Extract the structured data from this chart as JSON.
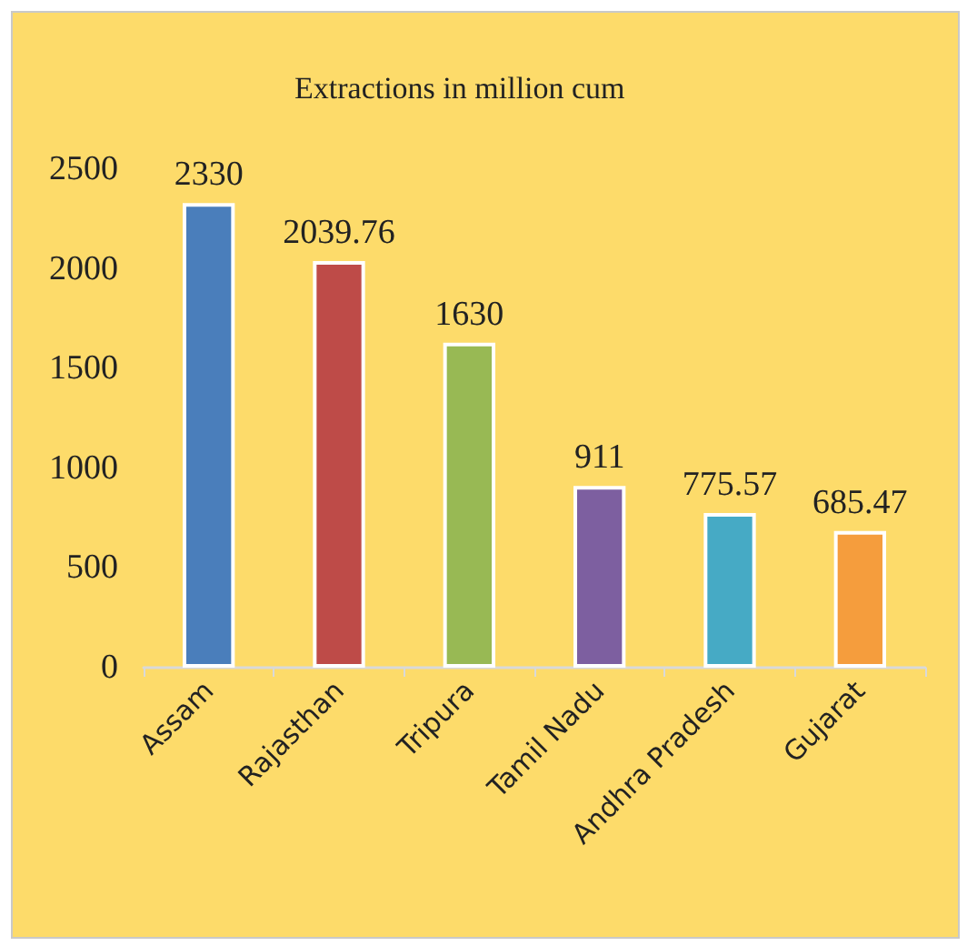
{
  "chart_data": {
    "type": "bar",
    "title": "Extractions in million cum",
    "categories": [
      "Assam",
      "Rajasthan",
      "Tripura",
      "Tamil Nadu",
      "Andhra Pradesh",
      "Gujarat"
    ],
    "values": [
      2330,
      2039.76,
      1630,
      911,
      775.57,
      685.47
    ],
    "colors": [
      "#4a7ebb",
      "#be4b48",
      "#98b954",
      "#7d5fa0",
      "#46aac5",
      "#f59d3d"
    ],
    "ylim": [
      0,
      2500
    ],
    "yticks": [
      0,
      500,
      1000,
      1500,
      2000,
      2500
    ],
    "data_labels": true,
    "grid": false
  }
}
